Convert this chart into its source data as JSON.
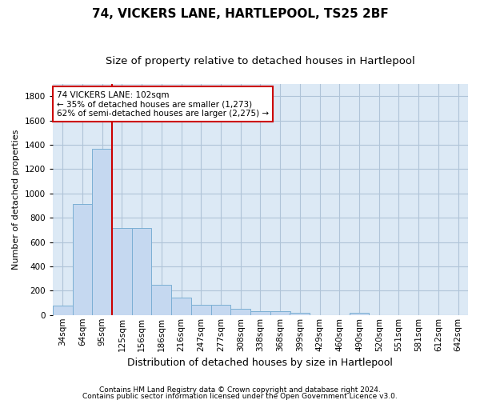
{
  "title1": "74, VICKERS LANE, HARTLEPOOL, TS25 2BF",
  "title2": "Size of property relative to detached houses in Hartlepool",
  "xlabel": "Distribution of detached houses by size in Hartlepool",
  "ylabel": "Number of detached properties",
  "categories": [
    "34sqm",
    "64sqm",
    "95sqm",
    "125sqm",
    "156sqm",
    "186sqm",
    "216sqm",
    "247sqm",
    "277sqm",
    "308sqm",
    "338sqm",
    "368sqm",
    "399sqm",
    "429sqm",
    "460sqm",
    "490sqm",
    "520sqm",
    "551sqm",
    "581sqm",
    "612sqm",
    "642sqm"
  ],
  "values": [
    80,
    910,
    1370,
    715,
    715,
    248,
    140,
    85,
    85,
    50,
    32,
    32,
    20,
    0,
    0,
    20,
    0,
    0,
    0,
    0,
    0
  ],
  "bar_color": "#c5d8f0",
  "bar_edge_color": "#7bafd4",
  "red_line_x": 2.5,
  "annotation_line1": "74 VICKERS LANE: 102sqm",
  "annotation_line2": "← 35% of detached houses are smaller (1,273)",
  "annotation_line3": "62% of semi-detached houses are larger (2,275) →",
  "annotation_box_color": "#ffffff",
  "annotation_border_color": "#cc0000",
  "red_line_color": "#cc0000",
  "ylim": [
    0,
    1900
  ],
  "yticks": [
    0,
    200,
    400,
    600,
    800,
    1000,
    1200,
    1400,
    1600,
    1800
  ],
  "footer1": "Contains HM Land Registry data © Crown copyright and database right 2024.",
  "footer2": "Contains public sector information licensed under the Open Government Licence v3.0.",
  "background_color": "#ffffff",
  "plot_bg_color": "#dce9f5",
  "grid_color": "#b0c4d8",
  "title1_fontsize": 11,
  "title2_fontsize": 9.5,
  "xlabel_fontsize": 9,
  "ylabel_fontsize": 8,
  "tick_fontsize": 7.5,
  "annotation_fontsize": 7.5,
  "footer_fontsize": 6.5
}
